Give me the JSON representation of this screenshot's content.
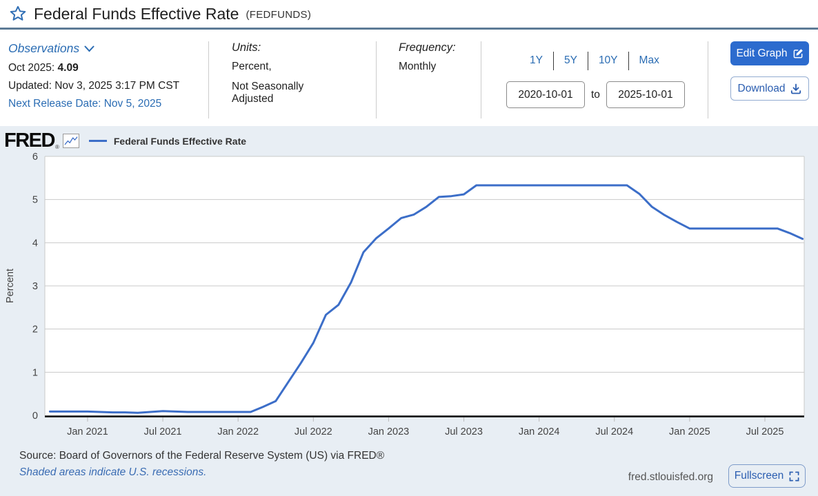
{
  "title_bar": {
    "title": "Federal Funds Effective Rate",
    "series_id": "(FEDFUNDS)"
  },
  "meta": {
    "observations_label": "Observations",
    "latest_period": "Oct 2025:",
    "latest_value": "4.09",
    "updated": "Updated: Nov 3, 2025 3:17 PM CST",
    "next_release": "Next Release Date: Nov 5, 2025",
    "units_label": "Units:",
    "units_value_line1": "Percent,",
    "units_value_line2": "Not Seasonally Adjusted",
    "frequency_label": "Frequency:",
    "frequency_value": "Monthly",
    "range_1y": "1Y",
    "range_5y": "5Y",
    "range_10y": "10Y",
    "range_max": "Max",
    "date_from": "2020-10-01",
    "to_label": "to",
    "date_to": "2025-10-01",
    "edit_graph_label": "Edit Graph",
    "download_label": "Download"
  },
  "chart_header": {
    "brand": "FRED",
    "reg_mark": "®",
    "legend_label": "Federal Funds Effective Rate"
  },
  "footer": {
    "source": "Source: Board of Governors of the Federal Reserve System (US) via FRED®",
    "shaded_note": "Shaded areas indicate U.S. recessions.",
    "site": "fred.stlouisfed.org",
    "fullscreen_label": "Fullscreen"
  },
  "colors": {
    "link_blue": "#2a6cb3",
    "button_blue": "#2c6bce",
    "line_blue": "#3c6ec8",
    "title_divider": "#5d7b96",
    "panel_bg": "#e8eef4"
  },
  "chart_data": {
    "type": "line",
    "title": "Federal Funds Effective Rate",
    "ylabel": "Percent",
    "ylim": [
      0,
      6
    ],
    "yticks": [
      0,
      1,
      2,
      3,
      4,
      5,
      6
    ],
    "grid": true,
    "legend_position": "top-left",
    "line_color": "#3c6ec8",
    "x": [
      "2020-10",
      "2020-11",
      "2020-12",
      "2021-01",
      "2021-02",
      "2021-03",
      "2021-04",
      "2021-05",
      "2021-06",
      "2021-07",
      "2021-08",
      "2021-09",
      "2021-10",
      "2021-11",
      "2021-12",
      "2022-01",
      "2022-02",
      "2022-03",
      "2022-04",
      "2022-05",
      "2022-06",
      "2022-07",
      "2022-08",
      "2022-09",
      "2022-10",
      "2022-11",
      "2022-12",
      "2023-01",
      "2023-02",
      "2023-03",
      "2023-04",
      "2023-05",
      "2023-06",
      "2023-07",
      "2023-08",
      "2023-09",
      "2023-10",
      "2023-11",
      "2023-12",
      "2024-01",
      "2024-02",
      "2024-03",
      "2024-04",
      "2024-05",
      "2024-06",
      "2024-07",
      "2024-08",
      "2024-09",
      "2024-10",
      "2024-11",
      "2024-12",
      "2025-01",
      "2025-02",
      "2025-03",
      "2025-04",
      "2025-05",
      "2025-06",
      "2025-07",
      "2025-08",
      "2025-09",
      "2025-10"
    ],
    "values": [
      0.09,
      0.09,
      0.09,
      0.09,
      0.08,
      0.07,
      0.07,
      0.06,
      0.08,
      0.1,
      0.09,
      0.08,
      0.08,
      0.08,
      0.08,
      0.08,
      0.08,
      0.2,
      0.33,
      0.77,
      1.21,
      1.68,
      2.33,
      2.56,
      3.08,
      3.78,
      4.1,
      4.33,
      4.57,
      4.65,
      4.83,
      5.06,
      5.08,
      5.12,
      5.33,
      5.33,
      5.33,
      5.33,
      5.33,
      5.33,
      5.33,
      5.33,
      5.33,
      5.33,
      5.33,
      5.33,
      5.33,
      5.13,
      4.83,
      4.64,
      4.48,
      4.33,
      4.33,
      4.33,
      4.33,
      4.33,
      4.33,
      4.33,
      4.33,
      4.22,
      4.09
    ],
    "xtick_labels": [
      "Jan 2021",
      "Jul 2021",
      "Jan 2022",
      "Jul 2022",
      "Jan 2023",
      "Jul 2023",
      "Jan 2024",
      "Jul 2024",
      "Jan 2025",
      "Jul 2025"
    ],
    "xtick_indices": [
      3,
      9,
      15,
      21,
      27,
      33,
      39,
      45,
      51,
      57
    ]
  }
}
